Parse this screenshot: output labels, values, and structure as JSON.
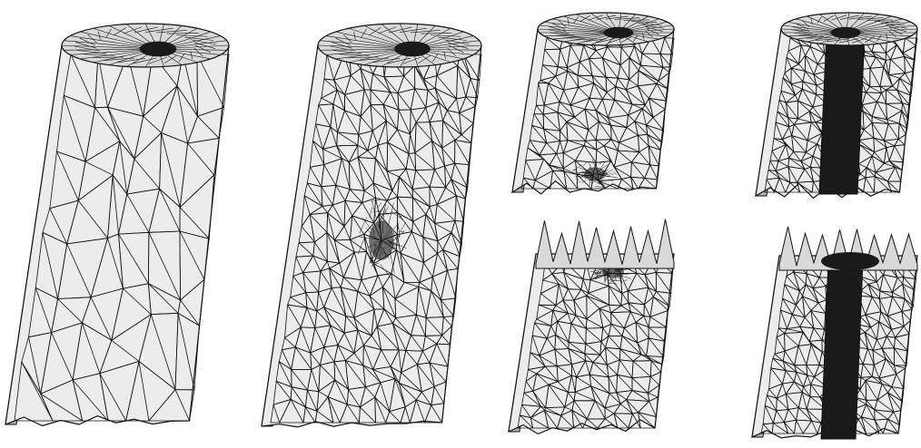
{
  "figure": {
    "panels": [
      {
        "name": "coarse-cylinder-mesh",
        "variant": "coarse"
      },
      {
        "name": "cylinder-mesh-center-refined",
        "variant": "center-refined"
      },
      {
        "name": "cylinder-cut-top-bottom-refined",
        "variant": "cut-top"
      },
      {
        "name": "cylinder-cut-bottom-piece",
        "variant": "cut-bottom"
      },
      {
        "name": "cylinder-cut-axis-refined-top",
        "variant": "axis-top"
      },
      {
        "name": "cylinder-cut-axis-refined-bottom",
        "variant": "axis-bottom"
      }
    ],
    "colors": {
      "background": "#ffffff",
      "face": "#ececec",
      "side_shade": "#b4b4b4",
      "top_face": "#d9d9d9",
      "edge": "#111111",
      "dense_region": "#1a1a1a"
    }
  }
}
